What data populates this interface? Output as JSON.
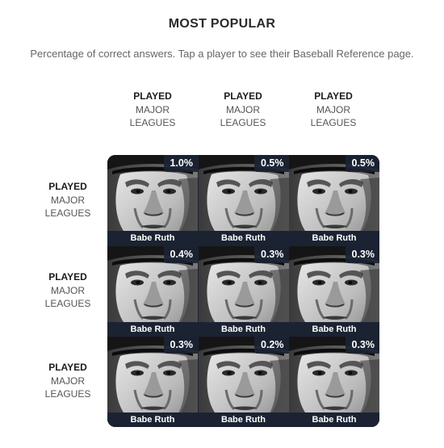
{
  "header": {
    "title": "MOST POPULAR",
    "subtitle": "Percentage of correct answers. Tap a player to see their Baseball Reference page."
  },
  "columns": [
    {
      "line1": "PLAYED",
      "line2": "MAJOR",
      "line3": "LEAGUES"
    },
    {
      "line1": "PLAYED",
      "line2": "MAJOR",
      "line3": "LEAGUES"
    },
    {
      "line1": "PLAYED",
      "line2": "MAJOR",
      "line3": "LEAGUES"
    }
  ],
  "rows": [
    {
      "line1": "PLAYED",
      "line2": "MAJOR",
      "line3": "LEAGUES"
    },
    {
      "line1": "PLAYED",
      "line2": "MAJOR",
      "line3": "LEAGUES"
    },
    {
      "line1": "PLAYED",
      "line2": "MAJOR",
      "line3": "LEAGUES"
    }
  ],
  "cells": [
    {
      "player": "Babe Ruth",
      "pct": "1.0%"
    },
    {
      "player": "Babe Ruth",
      "pct": "0.5%"
    },
    {
      "player": "Babe Ruth",
      "pct": "0.5%"
    },
    {
      "player": "Babe Ruth",
      "pct": "0.4%"
    },
    {
      "player": "Babe Ruth",
      "pct": "0.3%"
    },
    {
      "player": "Babe Ruth",
      "pct": "0.3%"
    },
    {
      "player": "Babe Ruth",
      "pct": "0.3%"
    },
    {
      "player": "Babe Ruth",
      "pct": "0.2%"
    },
    {
      "player": "Babe Ruth",
      "pct": "0.3%"
    }
  ],
  "colors": {
    "label_bg": "#1b2333",
    "label_text": "#ffffff"
  }
}
